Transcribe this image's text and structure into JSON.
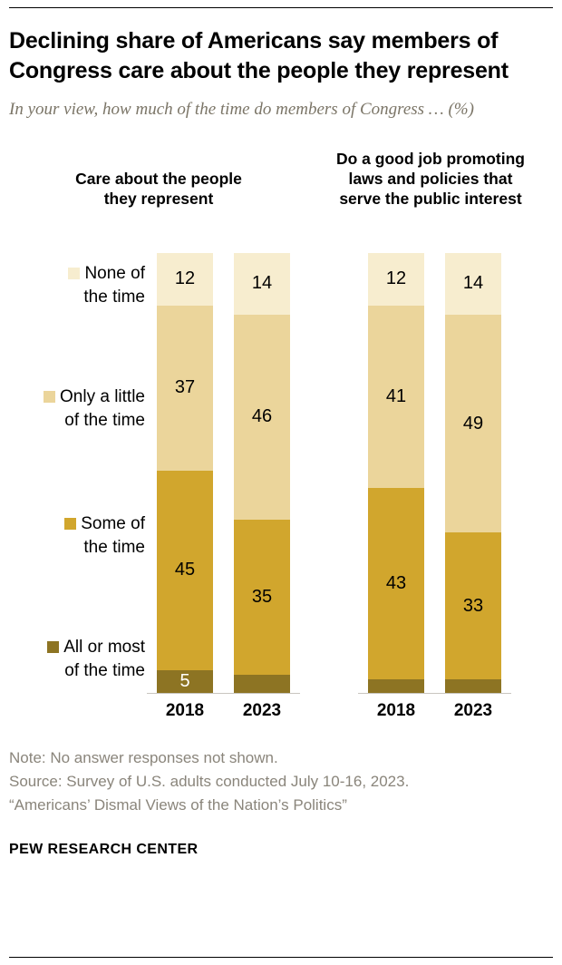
{
  "header": {
    "title": "Declining share of Americans say members of Congress care about the people they represent",
    "subtitle": "In your view, how much of the time do members of Congress … (%)"
  },
  "legend": [
    {
      "name": "None of the time",
      "label_lines": [
        "None of",
        "the time"
      ],
      "color": "#f7edcf"
    },
    {
      "name": "Only a little of the time",
      "label_lines": [
        "Only a little",
        "of the time"
      ],
      "color": "#ebd59b"
    },
    {
      "name": "Some of the time",
      "label_lines": [
        "Some of",
        "the time"
      ],
      "color": "#d1a62d"
    },
    {
      "name": "All or most of the time",
      "label_lines": [
        "All or most",
        "of the time"
      ],
      "color": "#8d7423"
    }
  ],
  "chart_data": {
    "type": "bar",
    "subtype": "stacked-100",
    "grid": false,
    "legend_position": "left",
    "ylim": [
      0,
      100
    ],
    "groups": [
      {
        "title": "Care about the people they represent",
        "categories": [
          "2018",
          "2023"
        ],
        "series": [
          {
            "name": "All or most of the time",
            "color": "#8d7423",
            "values": [
              5,
              4
            ],
            "value_labels": [
              "5",
              ""
            ],
            "label_color": "#ffffff"
          },
          {
            "name": "Some of the time",
            "color": "#d1a62d",
            "values": [
              45,
              35
            ],
            "value_labels": [
              "45",
              "35"
            ]
          },
          {
            "name": "Only a little of the time",
            "color": "#ebd59b",
            "values": [
              37,
              46
            ],
            "value_labels": [
              "37",
              "46"
            ]
          },
          {
            "name": "None of the time",
            "color": "#f7edcf",
            "values": [
              12,
              14
            ],
            "value_labels": [
              "12",
              "14"
            ]
          }
        ]
      },
      {
        "title": "Do a good job promoting laws and policies that serve the public interest",
        "categories": [
          "2018",
          "2023"
        ],
        "series": [
          {
            "name": "All or most of the time",
            "color": "#8d7423",
            "values": [
              3,
              3
            ],
            "value_labels": [
              "",
              ""
            ],
            "label_color": "#ffffff"
          },
          {
            "name": "Some of the time",
            "color": "#d1a62d",
            "values": [
              43,
              33
            ],
            "value_labels": [
              "43",
              "33"
            ]
          },
          {
            "name": "Only a little of the time",
            "color": "#ebd59b",
            "values": [
              41,
              49
            ],
            "value_labels": [
              "41",
              "49"
            ]
          },
          {
            "name": "None of the time",
            "color": "#f7edcf",
            "values": [
              12,
              14
            ],
            "value_labels": [
              "12",
              "14"
            ]
          }
        ]
      }
    ]
  },
  "footer": {
    "note": "Note: No answer responses not shown.",
    "source": "Source: Survey of U.S. adults conducted July 10-16, 2023.",
    "report": "“Americans’ Dismal Views of the Nation’s Politics”",
    "brand": "PEW RESEARCH CENTER"
  }
}
